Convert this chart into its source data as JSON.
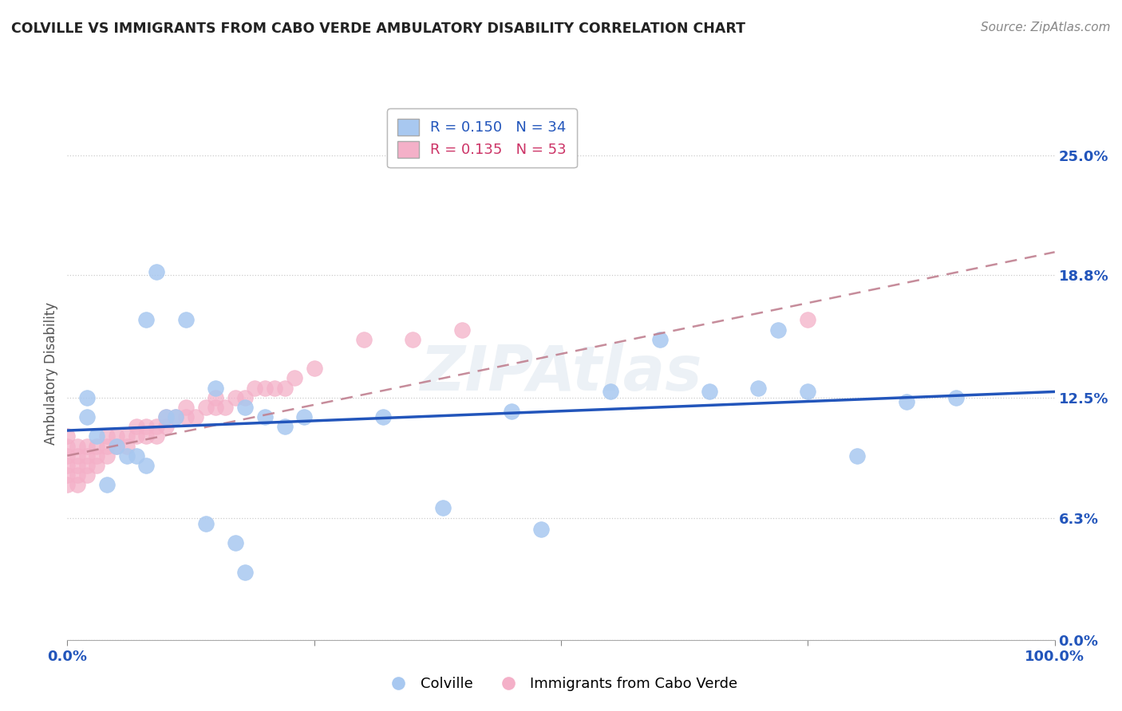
{
  "title": "COLVILLE VS IMMIGRANTS FROM CABO VERDE AMBULATORY DISABILITY CORRELATION CHART",
  "source": "Source: ZipAtlas.com",
  "ylabel": "Ambulatory Disability",
  "colville_R": 0.15,
  "colville_N": 34,
  "caboverde_R": 0.135,
  "caboverde_N": 53,
  "colville_color": "#a8c8f0",
  "caboverde_color": "#f4b0c8",
  "colville_line_color": "#2255bb",
  "caboverde_line_color": "#cc3366",
  "dashed_line_color": "#c08090",
  "background_color": "#ffffff",
  "grid_color": "#cccccc",
  "ylim": [
    0.0,
    0.275
  ],
  "xlim": [
    0.0,
    1.0
  ],
  "yticks": [
    0.0,
    0.063,
    0.125,
    0.188,
    0.25
  ],
  "ytick_labels": [
    "0.0%",
    "6.3%",
    "12.5%",
    "18.8%",
    "25.0%"
  ],
  "legend_label1": "Colville",
  "legend_label2": "Immigrants from Cabo Verde",
  "watermark": "ZIPAtlas",
  "colville_x": [
    0.02,
    0.02,
    0.03,
    0.04,
    0.05,
    0.06,
    0.07,
    0.08,
    0.08,
    0.09,
    0.1,
    0.11,
    0.12,
    0.14,
    0.15,
    0.17,
    0.18,
    0.18,
    0.2,
    0.22,
    0.24,
    0.32,
    0.45,
    0.55,
    0.6,
    0.65,
    0.7,
    0.72,
    0.75,
    0.8,
    0.85,
    0.9,
    0.38,
    0.48
  ],
  "colville_y": [
    0.125,
    0.115,
    0.105,
    0.08,
    0.1,
    0.095,
    0.095,
    0.09,
    0.165,
    0.19,
    0.115,
    0.115,
    0.165,
    0.06,
    0.13,
    0.05,
    0.12,
    0.035,
    0.115,
    0.11,
    0.115,
    0.115,
    0.118,
    0.128,
    0.155,
    0.128,
    0.13,
    0.16,
    0.128,
    0.095,
    0.123,
    0.125,
    0.068,
    0.057
  ],
  "caboverde_x": [
    0.0,
    0.0,
    0.0,
    0.0,
    0.0,
    0.0,
    0.01,
    0.01,
    0.01,
    0.01,
    0.01,
    0.02,
    0.02,
    0.02,
    0.02,
    0.03,
    0.03,
    0.03,
    0.04,
    0.04,
    0.04,
    0.05,
    0.05,
    0.06,
    0.06,
    0.07,
    0.07,
    0.08,
    0.08,
    0.09,
    0.09,
    0.1,
    0.1,
    0.11,
    0.12,
    0.12,
    0.13,
    0.14,
    0.15,
    0.15,
    0.16,
    0.17,
    0.18,
    0.19,
    0.2,
    0.21,
    0.22,
    0.23,
    0.25,
    0.3,
    0.35,
    0.4,
    0.75
  ],
  "caboverde_y": [
    0.08,
    0.085,
    0.09,
    0.095,
    0.1,
    0.105,
    0.08,
    0.085,
    0.09,
    0.095,
    0.1,
    0.085,
    0.09,
    0.095,
    0.1,
    0.09,
    0.095,
    0.1,
    0.095,
    0.1,
    0.105,
    0.1,
    0.105,
    0.1,
    0.105,
    0.105,
    0.11,
    0.105,
    0.11,
    0.105,
    0.11,
    0.11,
    0.115,
    0.115,
    0.115,
    0.12,
    0.115,
    0.12,
    0.12,
    0.125,
    0.12,
    0.125,
    0.125,
    0.13,
    0.13,
    0.13,
    0.13,
    0.135,
    0.14,
    0.155,
    0.155,
    0.16,
    0.165
  ],
  "colville_trendline_x": [
    0.0,
    1.0
  ],
  "colville_trendline_y": [
    0.108,
    0.128
  ],
  "caboverde_trendline_x": [
    0.0,
    1.0
  ],
  "caboverde_trendline_y": [
    0.095,
    0.2
  ]
}
